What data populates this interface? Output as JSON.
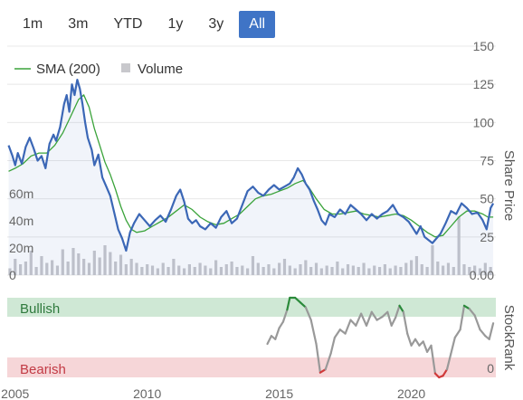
{
  "range_selector": {
    "buttons": [
      "1m",
      "3m",
      "YTD",
      "1y",
      "3y",
      "All"
    ],
    "active": "All"
  },
  "colors": {
    "price": "#3b67b6",
    "sma": "#3aa33a",
    "volume": "#c8c8cc",
    "bullish_band": "#cfe8d5",
    "bearish_band": "#f6d6d8",
    "rank_neutral": "#999999",
    "rank_bull": "#2a8a3a",
    "rank_bear": "#d03a3a",
    "active_button": "#3f74c6"
  },
  "chart_data": [
    {
      "type": "line",
      "x_unit": "year",
      "xlim": [
        2004.7,
        2023.2
      ],
      "x_tick_labels": [
        "2005",
        "2010",
        "2015",
        "2020"
      ],
      "ylabel": "Share Price",
      "ylim": [
        0,
        150
      ],
      "y_tick_labels": [
        "0.00",
        "25",
        "50",
        "75",
        "100",
        "125",
        "150"
      ],
      "legend": {
        "placement": "top-left",
        "entries": [
          "SMA (200)",
          "Volume"
        ]
      },
      "series": [
        {
          "name": "",
          "role": "price",
          "points": [
            [
              2004.75,
              85
            ],
            [
              2004.9,
              78
            ],
            [
              2005.0,
              72
            ],
            [
              2005.1,
              80
            ],
            [
              2005.25,
              73
            ],
            [
              2005.4,
              84
            ],
            [
              2005.55,
              90
            ],
            [
              2005.7,
              83
            ],
            [
              2005.85,
              75
            ],
            [
              2006.0,
              78
            ],
            [
              2006.15,
              70
            ],
            [
              2006.3,
              86
            ],
            [
              2006.45,
              92
            ],
            [
              2006.55,
              88
            ],
            [
              2006.7,
              97
            ],
            [
              2006.85,
              112
            ],
            [
              2006.95,
              118
            ],
            [
              2007.05,
              107
            ],
            [
              2007.15,
              125
            ],
            [
              2007.25,
              118
            ],
            [
              2007.35,
              128
            ],
            [
              2007.45,
              122
            ],
            [
              2007.55,
              112
            ],
            [
              2007.65,
              100
            ],
            [
              2007.75,
              90
            ],
            [
              2007.9,
              82
            ],
            [
              2008.0,
              72
            ],
            [
              2008.15,
              79
            ],
            [
              2008.3,
              64
            ],
            [
              2008.45,
              58
            ],
            [
              2008.6,
              52
            ],
            [
              2008.75,
              41
            ],
            [
              2008.9,
              30
            ],
            [
              2009.05,
              24
            ],
            [
              2009.2,
              16
            ],
            [
              2009.35,
              28
            ],
            [
              2009.5,
              34
            ],
            [
              2009.7,
              40
            ],
            [
              2009.9,
              36
            ],
            [
              2010.1,
              32
            ],
            [
              2010.3,
              36
            ],
            [
              2010.5,
              39
            ],
            [
              2010.7,
              35
            ],
            [
              2010.9,
              43
            ],
            [
              2011.1,
              52
            ],
            [
              2011.25,
              56
            ],
            [
              2011.4,
              48
            ],
            [
              2011.55,
              37
            ],
            [
              2011.7,
              34
            ],
            [
              2011.85,
              36
            ],
            [
              2012.0,
              32
            ],
            [
              2012.2,
              30
            ],
            [
              2012.4,
              34
            ],
            [
              2012.6,
              31
            ],
            [
              2012.8,
              38
            ],
            [
              2013.0,
              42
            ],
            [
              2013.2,
              34
            ],
            [
              2013.4,
              37
            ],
            [
              2013.6,
              46
            ],
            [
              2013.8,
              55
            ],
            [
              2014.0,
              58
            ],
            [
              2014.2,
              54
            ],
            [
              2014.4,
              52
            ],
            [
              2014.6,
              56
            ],
            [
              2014.8,
              59
            ],
            [
              2015.0,
              56
            ],
            [
              2015.2,
              58
            ],
            [
              2015.4,
              60
            ],
            [
              2015.55,
              64
            ],
            [
              2015.7,
              70
            ],
            [
              2015.85,
              66
            ],
            [
              2016.0,
              60
            ],
            [
              2016.15,
              56
            ],
            [
              2016.3,
              49
            ],
            [
              2016.45,
              43
            ],
            [
              2016.6,
              36
            ],
            [
              2016.75,
              33
            ],
            [
              2016.9,
              40
            ],
            [
              2017.1,
              38
            ],
            [
              2017.3,
              43
            ],
            [
              2017.5,
              40
            ],
            [
              2017.7,
              46
            ],
            [
              2017.9,
              43
            ],
            [
              2018.1,
              40
            ],
            [
              2018.3,
              36
            ],
            [
              2018.5,
              40
            ],
            [
              2018.7,
              37
            ],
            [
              2018.9,
              40
            ],
            [
              2019.1,
              42
            ],
            [
              2019.3,
              46
            ],
            [
              2019.5,
              40
            ],
            [
              2019.7,
              38
            ],
            [
              2019.9,
              35
            ],
            [
              2020.05,
              31
            ],
            [
              2020.2,
              27
            ],
            [
              2020.35,
              32
            ],
            [
              2020.5,
              25
            ],
            [
              2020.65,
              23
            ],
            [
              2020.8,
              21
            ],
            [
              2020.95,
              24
            ],
            [
              2021.1,
              27
            ],
            [
              2021.3,
              34
            ],
            [
              2021.5,
              42
            ],
            [
              2021.7,
              40
            ],
            [
              2021.9,
              47
            ],
            [
              2022.1,
              44
            ],
            [
              2022.3,
              40
            ],
            [
              2022.5,
              41
            ],
            [
              2022.7,
              36
            ],
            [
              2022.85,
              30
            ],
            [
              2023.0,
              44
            ],
            [
              2023.1,
              47
            ]
          ]
        },
        {
          "name": "SMA (200)",
          "role": "sma",
          "points": [
            [
              2004.75,
              68
            ],
            [
              2005.0,
              70
            ],
            [
              2005.3,
              73
            ],
            [
              2005.6,
              78
            ],
            [
              2005.9,
              80
            ],
            [
              2006.2,
              80
            ],
            [
              2006.5,
              85
            ],
            [
              2006.8,
              93
            ],
            [
              2007.1,
              104
            ],
            [
              2007.4,
              115
            ],
            [
              2007.6,
              118
            ],
            [
              2007.8,
              110
            ],
            [
              2008.0,
              96
            ],
            [
              2008.2,
              85
            ],
            [
              2008.4,
              74
            ],
            [
              2008.6,
              66
            ],
            [
              2008.8,
              56
            ],
            [
              2009.0,
              45
            ],
            [
              2009.2,
              36
            ],
            [
              2009.4,
              30
            ],
            [
              2009.6,
              28
            ],
            [
              2009.9,
              29
            ],
            [
              2010.2,
              32
            ],
            [
              2010.5,
              35
            ],
            [
              2010.8,
              38
            ],
            [
              2011.1,
              42
            ],
            [
              2011.4,
              46
            ],
            [
              2011.7,
              43
            ],
            [
              2012.0,
              38
            ],
            [
              2012.3,
              35
            ],
            [
              2012.6,
              33
            ],
            [
              2012.9,
              34
            ],
            [
              2013.2,
              37
            ],
            [
              2013.5,
              40
            ],
            [
              2013.8,
              45
            ],
            [
              2014.1,
              50
            ],
            [
              2014.4,
              52
            ],
            [
              2014.7,
              53
            ],
            [
              2015.0,
              55
            ],
            [
              2015.3,
              57
            ],
            [
              2015.6,
              60
            ],
            [
              2015.9,
              62
            ],
            [
              2016.1,
              58
            ],
            [
              2016.4,
              50
            ],
            [
              2016.7,
              43
            ],
            [
              2017.0,
              40
            ],
            [
              2017.3,
              40
            ],
            [
              2017.6,
              41
            ],
            [
              2017.9,
              42
            ],
            [
              2018.2,
              40
            ],
            [
              2018.5,
              39
            ],
            [
              2018.8,
              38
            ],
            [
              2019.1,
              39
            ],
            [
              2019.4,
              40
            ],
            [
              2019.7,
              39
            ],
            [
              2020.0,
              36
            ],
            [
              2020.3,
              32
            ],
            [
              2020.6,
              28
            ],
            [
              2020.9,
              25
            ],
            [
              2021.2,
              26
            ],
            [
              2021.5,
              32
            ],
            [
              2021.8,
              38
            ],
            [
              2022.1,
              42
            ],
            [
              2022.4,
              42
            ],
            [
              2022.7,
              40
            ],
            [
              2022.9,
              38
            ],
            [
              2023.1,
              38
            ]
          ]
        }
      ]
    },
    {
      "type": "bar",
      "name": "Volume",
      "y_tick_labels": [
        "0",
        "20m",
        "40m",
        "60m"
      ],
      "ylim": [
        0,
        80
      ],
      "note": "volume in millions",
      "x": [
        2004.8,
        2005.0,
        2005.2,
        2005.4,
        2005.6,
        2005.8,
        2006.0,
        2006.2,
        2006.4,
        2006.6,
        2006.8,
        2007.0,
        2007.2,
        2007.4,
        2007.6,
        2007.8,
        2008.0,
        2008.2,
        2008.4,
        2008.6,
        2008.8,
        2009.0,
        2009.2,
        2009.4,
        2009.6,
        2009.8,
        2010.0,
        2010.2,
        2010.4,
        2010.6,
        2010.8,
        2011.0,
        2011.2,
        2011.4,
        2011.6,
        2011.8,
        2012.0,
        2012.2,
        2012.4,
        2012.6,
        2012.8,
        2013.0,
        2013.2,
        2013.4,
        2013.6,
        2013.8,
        2014.0,
        2014.2,
        2014.4,
        2014.6,
        2014.8,
        2015.0,
        2015.2,
        2015.4,
        2015.6,
        2015.8,
        2016.0,
        2016.2,
        2016.4,
        2016.6,
        2016.8,
        2017.0,
        2017.2,
        2017.4,
        2017.6,
        2017.8,
        2018.0,
        2018.2,
        2018.4,
        2018.6,
        2018.8,
        2019.0,
        2019.2,
        2019.4,
        2019.6,
        2019.8,
        2020.0,
        2020.2,
        2020.4,
        2020.6,
        2020.8,
        2021.0,
        2021.2,
        2021.4,
        2021.6,
        2021.8,
        2022.0,
        2022.2,
        2022.4,
        2022.6,
        2022.8,
        2023.0
      ],
      "values": [
        5,
        12,
        8,
        10,
        18,
        6,
        14,
        9,
        11,
        7,
        19,
        10,
        20,
        16,
        12,
        9,
        18,
        13,
        22,
        17,
        10,
        15,
        8,
        12,
        9,
        6,
        8,
        7,
        5,
        9,
        6,
        12,
        7,
        5,
        8,
        6,
        9,
        7,
        5,
        11,
        6,
        8,
        10,
        6,
        7,
        5,
        14,
        9,
        6,
        8,
        5,
        9,
        12,
        7,
        5,
        8,
        11,
        6,
        9,
        5,
        7,
        6,
        10,
        5,
        8,
        7,
        6,
        9,
        5,
        7,
        6,
        8,
        5,
        7,
        6,
        9,
        11,
        14,
        8,
        6,
        22,
        10,
        7,
        9,
        6,
        43,
        8,
        6,
        7,
        5,
        9,
        6
      ]
    },
    {
      "type": "line",
      "name": "StockRank",
      "ylabel": "StockRank",
      "ylim": [
        0,
        100
      ],
      "y_tick_labels": [
        "0"
      ],
      "zones": {
        "bullish": "Bullish",
        "bearish": "Bearish"
      },
      "points": [
        [
          2014.55,
          42
        ],
        [
          2014.7,
          52
        ],
        [
          2014.85,
          48
        ],
        [
          2015.0,
          62
        ],
        [
          2015.15,
          70
        ],
        [
          2015.3,
          85
        ],
        [
          2015.4,
          100
        ],
        [
          2015.6,
          100
        ],
        [
          2015.8,
          94
        ],
        [
          2016.0,
          88
        ],
        [
          2016.2,
          72
        ],
        [
          2016.4,
          42
        ],
        [
          2016.55,
          6
        ],
        [
          2016.75,
          10
        ],
        [
          2016.95,
          30
        ],
        [
          2017.1,
          50
        ],
        [
          2017.3,
          60
        ],
        [
          2017.5,
          55
        ],
        [
          2017.7,
          72
        ],
        [
          2017.9,
          65
        ],
        [
          2018.1,
          80
        ],
        [
          2018.3,
          65
        ],
        [
          2018.5,
          82
        ],
        [
          2018.7,
          72
        ],
        [
          2018.9,
          76
        ],
        [
          2019.1,
          82
        ],
        [
          2019.25,
          65
        ],
        [
          2019.4,
          75
        ],
        [
          2019.55,
          90
        ],
        [
          2019.7,
          82
        ],
        [
          2019.85,
          55
        ],
        [
          2020.0,
          40
        ],
        [
          2020.15,
          48
        ],
        [
          2020.3,
          40
        ],
        [
          2020.45,
          45
        ],
        [
          2020.6,
          32
        ],
        [
          2020.75,
          40
        ],
        [
          2020.9,
          5
        ],
        [
          2021.05,
          0
        ],
        [
          2021.2,
          2
        ],
        [
          2021.35,
          10
        ],
        [
          2021.5,
          30
        ],
        [
          2021.65,
          50
        ],
        [
          2021.85,
          60
        ],
        [
          2022.0,
          90
        ],
        [
          2022.2,
          86
        ],
        [
          2022.4,
          78
        ],
        [
          2022.6,
          60
        ],
        [
          2022.8,
          52
        ],
        [
          2022.95,
          48
        ],
        [
          2023.1,
          68
        ]
      ]
    }
  ]
}
